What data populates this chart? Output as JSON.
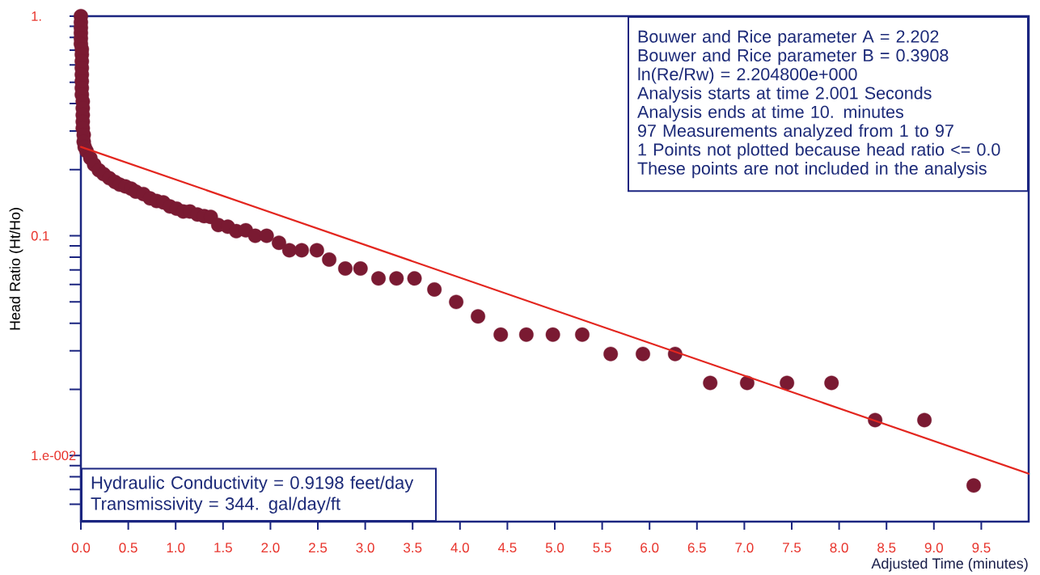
{
  "chart_data": {
    "type": "scatter",
    "xlabel": "Adjusted Time (minutes)",
    "ylabel": "Head Ratio (Ht/Ho)",
    "xlim": [
      0,
      10
    ],
    "ylim": [
      0.005,
      1
    ],
    "log": true,
    "marker": "circle",
    "xticks": [
      {
        "value": 0,
        "label": "0.0"
      },
      0.5,
      {
        "value": 1,
        "label": "1.0"
      },
      1.5,
      {
        "value": 2,
        "label": "2.0"
      },
      2.5,
      {
        "value": 3,
        "label": "3.0"
      },
      3.5,
      {
        "value": 4,
        "label": "4.0"
      },
      4.5,
      {
        "value": 5,
        "label": "5.0"
      },
      5.5,
      {
        "value": 6,
        "label": "6.0"
      },
      6.5,
      {
        "value": 7,
        "label": "7.0"
      },
      7.5,
      {
        "value": 8,
        "label": "8.0"
      },
      8.5,
      {
        "value": 9,
        "label": "9.0"
      },
      9.5
    ],
    "yticks": [
      {
        "value": 1,
        "label": "1."
      },
      {
        "value": 0.9,
        "label": null
      },
      {
        "value": 0.8,
        "label": null
      },
      {
        "value": 0.7,
        "label": null
      },
      {
        "value": 0.6,
        "label": null
      },
      {
        "value": 0.5,
        "label": null
      },
      {
        "value": 0.4,
        "label": null
      },
      {
        "value": 0.3,
        "label": null
      },
      {
        "value": 0.2,
        "label": null
      },
      0.1,
      {
        "value": 0.09,
        "label": null
      },
      {
        "value": 0.08,
        "label": null
      },
      {
        "value": 0.07,
        "label": null
      },
      {
        "value": 0.06,
        "label": null
      },
      {
        "value": 0.05,
        "label": null
      },
      {
        "value": 0.04,
        "label": null
      },
      {
        "value": 0.03,
        "label": null
      },
      {
        "value": 0.02,
        "label": null
      },
      {
        "value": 0.01,
        "label": "1.e-002"
      },
      {
        "value": 0.009,
        "label": null
      },
      {
        "value": 0.008,
        "label": null
      },
      {
        "value": 0.007,
        "label": null
      },
      {
        "value": 0.006,
        "label": null
      }
    ],
    "annotations": [
      "Bouwer and Rice parameter A = 2.202",
      "Bouwer and Rice parameter B = 0.3908",
      "ln(Re/Rw) = 2.204800e+000",
      "Analysis starts at time 2.001 Seconds",
      "Analysis ends at time 10. minutes",
      "97 Measurements analyzed from 1 to 97",
      "1 Points not plotted because head ratio <= 0.0",
      "These points are not included in the analysis",
      "Hydraulic Conductivity = 0.9198 feet/day",
      "Transmissivity = 344. gal/day/ft"
    ],
    "series": [
      {
        "type": "scatter",
        "color": "#7a1a32",
        "x": [
          0.0,
          0.0,
          0.0,
          0.0,
          0.0,
          0.0,
          0.01,
          0.01,
          0.01,
          0.01,
          0.01,
          0.01,
          0.01,
          0.01,
          0.02,
          0.02,
          0.02,
          0.02,
          0.02,
          0.03,
          0.03,
          0.04,
          0.06,
          0.1,
          0.14,
          0.19,
          0.24,
          0.3,
          0.36,
          0.41,
          0.47,
          0.53,
          0.58,
          0.66,
          0.73,
          0.8,
          0.87,
          0.94,
          1.01,
          1.08,
          1.15,
          1.23,
          1.3,
          1.37,
          1.45,
          1.55,
          1.64,
          1.74,
          1.84,
          1.96,
          2.09,
          2.2,
          2.33,
          2.49,
          2.62,
          2.79,
          2.95,
          3.14,
          3.33,
          3.52,
          3.73,
          3.96,
          4.19,
          4.43,
          4.7,
          4.98,
          5.29,
          5.59,
          5.93,
          6.27,
          6.64,
          7.03,
          7.45,
          7.92,
          8.38,
          8.9,
          9.42
        ],
        "values": [
          1.0,
          0.938,
          0.886,
          0.838,
          0.792,
          0.748,
          0.707,
          0.669,
          0.623,
          0.581,
          0.542,
          0.505,
          0.471,
          0.439,
          0.409,
          0.381,
          0.355,
          0.331,
          0.309,
          0.288,
          0.268,
          0.254,
          0.243,
          0.226,
          0.211,
          0.199,
          0.191,
          0.183,
          0.176,
          0.171,
          0.168,
          0.164,
          0.159,
          0.155,
          0.148,
          0.144,
          0.142,
          0.136,
          0.133,
          0.129,
          0.129,
          0.125,
          0.123,
          0.122,
          0.112,
          0.11,
          0.105,
          0.106,
          0.1,
          0.1,
          0.093,
          0.086,
          0.086,
          0.086,
          0.078,
          0.071,
          0.071,
          0.064,
          0.064,
          0.064,
          0.057,
          0.05,
          0.043,
          0.0355,
          0.0355,
          0.0355,
          0.0355,
          0.029,
          0.029,
          0.029,
          0.0214,
          0.0214,
          0.0214,
          0.0214,
          0.0145,
          0.0145,
          0.0073
        ]
      },
      {
        "type": "line",
        "color": "#e3261f",
        "marker": "none",
        "x": [
          0,
          10
        ],
        "values": [
          0.254,
          0.00826
        ]
      }
    ]
  }
}
